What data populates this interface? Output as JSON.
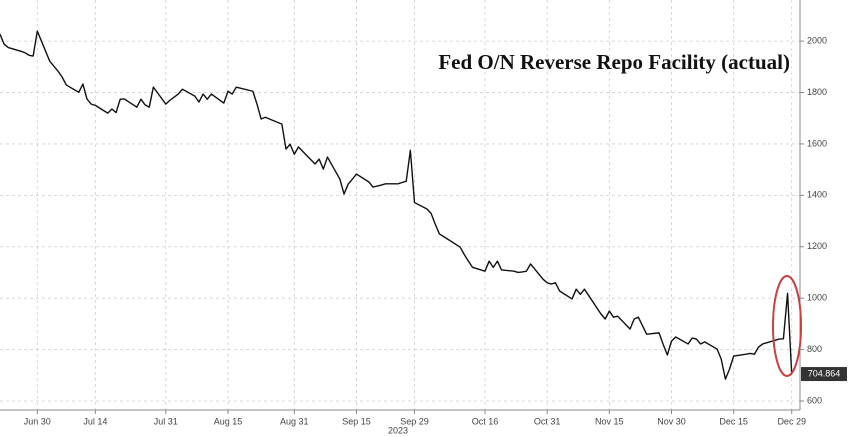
{
  "chart_data": {
    "type": "line",
    "title": "Fed O/N Reverse Repo Facility (actual)",
    "xlabel": "2023",
    "series": [
      {
        "color": "#111111",
        "x": [
          "2023-06-21",
          "2023-06-22",
          "2023-06-23",
          "2023-06-26",
          "2023-06-27",
          "2023-06-28",
          "2023-06-29",
          "2023-06-30",
          "2023-07-03",
          "2023-07-05",
          "2023-07-06",
          "2023-07-07",
          "2023-07-10",
          "2023-07-11",
          "2023-07-12",
          "2023-07-13",
          "2023-07-14",
          "2023-07-17",
          "2023-07-18",
          "2023-07-19",
          "2023-07-20",
          "2023-07-21",
          "2023-07-24",
          "2023-07-25",
          "2023-07-26",
          "2023-07-27",
          "2023-07-28",
          "2023-07-31",
          "2023-08-01",
          "2023-08-02",
          "2023-08-03",
          "2023-08-04",
          "2023-08-07",
          "2023-08-08",
          "2023-08-09",
          "2023-08-10",
          "2023-08-11",
          "2023-08-14",
          "2023-08-15",
          "2023-08-16",
          "2023-08-17",
          "2023-08-18",
          "2023-08-21",
          "2023-08-22",
          "2023-08-23",
          "2023-08-24",
          "2023-08-25",
          "2023-08-28",
          "2023-08-29",
          "2023-08-30",
          "2023-08-31",
          "2023-09-01",
          "2023-09-05",
          "2023-09-06",
          "2023-09-07",
          "2023-09-08",
          "2023-09-11",
          "2023-09-12",
          "2023-09-13",
          "2023-09-14",
          "2023-09-15",
          "2023-09-18",
          "2023-09-19",
          "2023-09-20",
          "2023-09-21",
          "2023-09-22",
          "2023-09-25",
          "2023-09-26",
          "2023-09-27",
          "2023-09-28",
          "2023-09-29",
          "2023-10-02",
          "2023-10-03",
          "2023-10-04",
          "2023-10-05",
          "2023-10-06",
          "2023-10-10",
          "2023-10-11",
          "2023-10-12",
          "2023-10-13",
          "2023-10-16",
          "2023-10-17",
          "2023-10-18",
          "2023-10-19",
          "2023-10-20",
          "2023-10-23",
          "2023-10-24",
          "2023-10-25",
          "2023-10-26",
          "2023-10-27",
          "2023-10-30",
          "2023-10-31",
          "2023-11-01",
          "2023-11-02",
          "2023-11-03",
          "2023-11-06",
          "2023-11-07",
          "2023-11-08",
          "2023-11-09",
          "2023-11-13",
          "2023-11-14",
          "2023-11-15",
          "2023-11-16",
          "2023-11-17",
          "2023-11-20",
          "2023-11-21",
          "2023-11-22",
          "2023-11-24",
          "2023-11-27",
          "2023-11-28",
          "2023-11-29",
          "2023-11-30",
          "2023-12-01",
          "2023-12-04",
          "2023-12-05",
          "2023-12-06",
          "2023-12-07",
          "2023-12-08",
          "2023-12-11",
          "2023-12-12",
          "2023-12-13",
          "2023-12-14",
          "2023-12-15",
          "2023-12-18",
          "2023-12-19",
          "2023-12-20",
          "2023-12-21",
          "2023-12-22",
          "2023-12-26",
          "2023-12-27",
          "2023-12-28",
          "2023-12-29"
        ],
        "values": [
          2027,
          1988,
          1975,
          1961,
          1955,
          1945,
          1942,
          2039,
          1922,
          1883,
          1860,
          1829,
          1801,
          1833,
          1774,
          1755,
          1750,
          1720,
          1736,
          1722,
          1774,
          1775,
          1743,
          1774,
          1752,
          1743,
          1821,
          1755,
          1770,
          1782,
          1794,
          1813,
          1786,
          1763,
          1794,
          1774,
          1794,
          1759,
          1805,
          1794,
          1821,
          1817,
          1805,
          1755,
          1697,
          1704,
          1697,
          1677,
          1580,
          1599,
          1560,
          1588,
          1522,
          1541,
          1502,
          1549,
          1463,
          1405,
          1444,
          1463,
          1483,
          1452,
          1432,
          1436,
          1440,
          1445,
          1445,
          1450,
          1455,
          1575,
          1372,
          1347,
          1330,
          1288,
          1250,
          1240,
          1199,
          1170,
          1144,
          1120,
          1105,
          1144,
          1120,
          1144,
          1110,
          1105,
          1100,
          1102,
          1105,
          1133,
          1074,
          1060,
          1055,
          1060,
          1028,
          997,
          1035,
          1015,
          1035,
          938,
          919,
          950,
          926,
          930,
          880,
          919,
          926,
          860,
          865,
          820,
          779,
          833,
          849,
          822,
          845,
          841,
          822,
          830,
          802,
          763,
          685,
          724,
          775,
          782,
          785,
          782,
          810,
          822,
          841,
          842,
          1019,
          704.864
        ]
      }
    ],
    "xlim": [
      "2023-06-21",
      "2023-12-31"
    ],
    "xticks": [
      {
        "value": "2023-06-30",
        "label": "Jun 30"
      },
      {
        "value": "2023-07-14",
        "label": "Jul 14"
      },
      {
        "value": "2023-07-31",
        "label": "Jul 31"
      },
      {
        "value": "2023-08-15",
        "label": "Aug 15"
      },
      {
        "value": "2023-08-31",
        "label": "Aug 31"
      },
      {
        "value": "2023-09-15",
        "label": "Sep 15"
      },
      {
        "value": "2023-09-29",
        "label": "Sep 29"
      },
      {
        "value": "2023-10-16",
        "label": "Oct 16"
      },
      {
        "value": "2023-10-31",
        "label": "Oct 31"
      },
      {
        "value": "2023-11-15",
        "label": "Nov 15"
      },
      {
        "value": "2023-11-30",
        "label": "Nov 30"
      },
      {
        "value": "2023-12-15",
        "label": "Dec 15"
      },
      {
        "value": "2023-12-29",
        "label": "Dec 29"
      }
    ],
    "ylim": [
      565,
      2160
    ],
    "yticks": [
      600,
      800,
      1000,
      1200,
      1400,
      1600,
      1800,
      2000
    ],
    "grid": true
  }
}
